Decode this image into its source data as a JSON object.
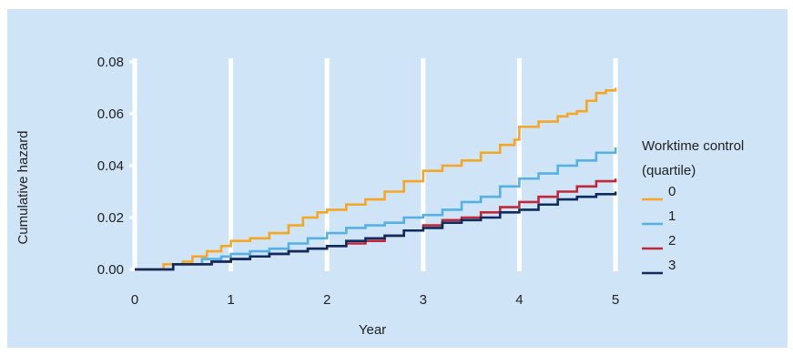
{
  "chart_data": {
    "type": "line",
    "step": true,
    "xlabel": "Year",
    "ylabel": "Cumulative hazard",
    "xlim": [
      0,
      5
    ],
    "ylim": [
      0,
      0.08
    ],
    "xticks": [
      "0",
      "1",
      "2",
      "3",
      "4",
      "5"
    ],
    "yticks": [
      "0.00",
      "0.02",
      "0.04",
      "0.06",
      "0.08"
    ],
    "ytick_values": [
      0,
      0.02,
      0.04,
      0.06,
      0.08
    ],
    "grid": "vertical white lines at each year",
    "legend": {
      "title_line1": "Worktime control",
      "title_line2": "(quartile)",
      "placement": "right"
    },
    "series": [
      {
        "name": "0",
        "color": "#f5a623",
        "x": [
          0,
          0.3,
          0.5,
          0.6,
          0.75,
          0.9,
          1.0,
          1.2,
          1.4,
          1.6,
          1.75,
          1.9,
          2.0,
          2.2,
          2.4,
          2.6,
          2.8,
          3.0,
          3.2,
          3.4,
          3.6,
          3.8,
          3.95,
          4.0,
          4.2,
          4.4,
          4.5,
          4.6,
          4.7,
          4.8,
          4.9,
          5.0
        ],
        "y": [
          0,
          0.002,
          0.003,
          0.005,
          0.007,
          0.009,
          0.011,
          0.012,
          0.014,
          0.017,
          0.02,
          0.022,
          0.023,
          0.025,
          0.027,
          0.03,
          0.034,
          0.038,
          0.04,
          0.042,
          0.045,
          0.048,
          0.05,
          0.055,
          0.057,
          0.059,
          0.06,
          0.061,
          0.065,
          0.068,
          0.069,
          0.07
        ]
      },
      {
        "name": "1",
        "color": "#55b0e6",
        "x": [
          0,
          0.4,
          0.7,
          0.9,
          1.0,
          1.2,
          1.4,
          1.6,
          1.8,
          2.0,
          2.2,
          2.4,
          2.6,
          2.8,
          3.0,
          3.2,
          3.4,
          3.6,
          3.8,
          4.0,
          4.2,
          4.4,
          4.6,
          4.8,
          5.0
        ],
        "y": [
          0,
          0.002,
          0.004,
          0.005,
          0.006,
          0.007,
          0.008,
          0.01,
          0.012,
          0.014,
          0.016,
          0.017,
          0.018,
          0.02,
          0.021,
          0.023,
          0.026,
          0.028,
          0.032,
          0.035,
          0.037,
          0.04,
          0.042,
          0.045,
          0.047
        ]
      },
      {
        "name": "2",
        "color": "#c0283a",
        "x": [
          0,
          0.4,
          0.8,
          1.0,
          1.2,
          1.4,
          1.6,
          1.8,
          2.0,
          2.2,
          2.4,
          2.6,
          2.8,
          3.0,
          3.2,
          3.4,
          3.6,
          3.8,
          4.0,
          4.2,
          4.4,
          4.6,
          4.8,
          5.0
        ],
        "y": [
          0,
          0.002,
          0.003,
          0.004,
          0.005,
          0.006,
          0.007,
          0.008,
          0.009,
          0.01,
          0.011,
          0.013,
          0.015,
          0.017,
          0.019,
          0.02,
          0.022,
          0.024,
          0.026,
          0.028,
          0.03,
          0.032,
          0.034,
          0.035
        ]
      },
      {
        "name": "3",
        "color": "#0d2b5e",
        "x": [
          0,
          0.4,
          0.8,
          1.0,
          1.2,
          1.4,
          1.6,
          1.8,
          2.0,
          2.2,
          2.4,
          2.6,
          2.8,
          3.0,
          3.2,
          3.4,
          3.6,
          3.8,
          4.0,
          4.2,
          4.4,
          4.6,
          4.8,
          5.0
        ],
        "y": [
          0,
          0.002,
          0.003,
          0.004,
          0.005,
          0.006,
          0.007,
          0.008,
          0.009,
          0.011,
          0.012,
          0.013,
          0.015,
          0.016,
          0.018,
          0.019,
          0.02,
          0.022,
          0.023,
          0.025,
          0.027,
          0.028,
          0.029,
          0.03
        ]
      }
    ]
  }
}
